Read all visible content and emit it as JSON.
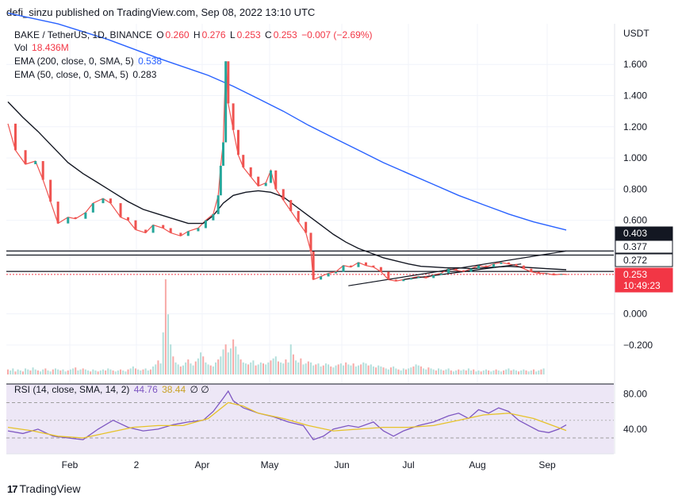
{
  "header": {
    "publisher": "defi_sinzu published on TradingView.com, Sep 08, 2022 13:10 UTC"
  },
  "footer": {
    "brand": "TradingView",
    "logo": "17"
  },
  "legend": {
    "symbol": "BAKE / TetherUS, 1D, BINANCE",
    "o_label": "O",
    "o": "0.260",
    "h_label": "H",
    "h": "0.276",
    "l_label": "L",
    "l": "0.253",
    "c_label": "C",
    "c": "0.253",
    "change": "−0.007 (−2.69%)",
    "vol_label": "Vol",
    "vol": "18.436M",
    "ema200_label": "EMA (200, close, 0, SMA, 5)",
    "ema200": "0.538",
    "ema50_label": "EMA (50, close, 0, SMA, 5)",
    "ema50": "0.283",
    "rsi_label": "RSI (14, close, SMA, 14, 2)",
    "rsi": "44.76",
    "rsi_ma": "38.44",
    "rsi_extra": "∅ ∅"
  },
  "colors": {
    "up": "#26a69a",
    "down": "#ef5350",
    "ema200": "#2962ff",
    "ema50": "#131722",
    "rsi": "#7e57c2",
    "rsi_ma": "#e6c229",
    "last_price": "#f23645"
  },
  "chart_data": [
    {
      "type": "line",
      "title": "BAKE / TetherUS, 1D, BINANCE",
      "currency": "USDT",
      "y_ticks": [
        "1.600",
        "1.400",
        "1.200",
        "1.000",
        "0.800",
        "0.600",
        "0.000",
        "−0.200"
      ],
      "x_ticks": [
        "Feb",
        "2",
        "Apr",
        "May",
        "Jun",
        "Jul",
        "Aug",
        "Sep"
      ],
      "price_labels": [
        {
          "label": "0.403",
          "value": 0.403,
          "style": "dark"
        },
        {
          "label": "0.377",
          "value": 0.377,
          "style": "outline"
        },
        {
          "label": "0.272",
          "value": 0.272,
          "style": "outline"
        },
        {
          "label": "0.253",
          "value": 0.253,
          "style": "red"
        },
        {
          "label": "10:49:23",
          "value": 0.253,
          "style": "red-timer"
        }
      ],
      "horizontal_levels": [
        0.403,
        0.377,
        0.272
      ],
      "last_price": 0.253,
      "series": [
        {
          "name": "BAKE / TetherUS",
          "kind": "close",
          "points": [
            [
              0,
              1.22
            ],
            [
              3,
              1.05
            ],
            [
              7,
              0.96
            ],
            [
              11,
              0.98
            ],
            [
              14,
              0.86
            ],
            [
              17,
              0.72
            ],
            [
              20,
              0.58
            ],
            [
              24,
              0.62
            ],
            [
              27,
              0.61
            ],
            [
              31,
              0.65
            ],
            [
              34,
              0.71
            ],
            [
              38,
              0.74
            ],
            [
              41,
              0.71
            ],
            [
              45,
              0.62
            ],
            [
              48,
              0.6
            ],
            [
              51,
              0.54
            ],
            [
              55,
              0.52
            ],
            [
              58,
              0.57
            ],
            [
              62,
              0.55
            ],
            [
              65,
              0.52
            ],
            [
              69,
              0.5
            ],
            [
              72,
              0.53
            ],
            [
              76,
              0.55
            ],
            [
              79,
              0.6
            ],
            [
              82,
              0.64
            ],
            [
              84,
              0.76
            ],
            [
              85,
              0.95
            ],
            [
              86,
              1.1
            ],
            [
              87,
              1.62
            ],
            [
              88,
              1.35
            ],
            [
              90,
              1.18
            ],
            [
              92,
              1.02
            ],
            [
              94,
              0.94
            ],
            [
              97,
              0.88
            ],
            [
              100,
              0.82
            ],
            [
              103,
              0.84
            ],
            [
              105,
              0.92
            ],
            [
              107,
              0.8
            ],
            [
              110,
              0.73
            ],
            [
              113,
              0.66
            ],
            [
              116,
              0.59
            ],
            [
              119,
              0.52
            ],
            [
              121,
              0.4
            ],
            [
              122,
              0.22
            ],
            [
              125,
              0.24
            ],
            [
              128,
              0.26
            ],
            [
              131,
              0.27
            ],
            [
              134,
              0.31
            ],
            [
              137,
              0.3
            ],
            [
              140,
              0.33
            ],
            [
              143,
              0.31
            ],
            [
              146,
              0.3
            ],
            [
              149,
              0.27
            ],
            [
              152,
              0.22
            ],
            [
              155,
              0.21
            ],
            [
              158,
              0.22
            ],
            [
              161,
              0.23
            ],
            [
              164,
              0.24
            ],
            [
              167,
              0.23
            ],
            [
              170,
              0.25
            ],
            [
              173,
              0.26
            ],
            [
              176,
              0.29
            ],
            [
              179,
              0.28
            ],
            [
              182,
              0.27
            ],
            [
              185,
              0.29
            ],
            [
              188,
              0.31
            ],
            [
              191,
              0.3
            ],
            [
              194,
              0.32
            ],
            [
              197,
              0.33
            ],
            [
              200,
              0.32
            ],
            [
              203,
              0.31
            ],
            [
              206,
              0.29
            ],
            [
              209,
              0.27
            ],
            [
              212,
              0.26
            ],
            [
              215,
              0.26
            ],
            [
              218,
              0.25
            ],
            [
              221,
              0.255
            ],
            [
              223,
              0.253
            ]
          ]
        },
        {
          "name": "EMA (200)",
          "kind": "line",
          "points": [
            [
              0,
              1.93
            ],
            [
              20,
              1.86
            ],
            [
              40,
              1.76
            ],
            [
              60,
              1.64
            ],
            [
              80,
              1.53
            ],
            [
              90,
              1.46
            ],
            [
              100,
              1.38
            ],
            [
              110,
              1.3
            ],
            [
              120,
              1.21
            ],
            [
              130,
              1.13
            ],
            [
              140,
              1.05
            ],
            [
              150,
              0.97
            ],
            [
              160,
              0.9
            ],
            [
              170,
              0.83
            ],
            [
              180,
              0.76
            ],
            [
              190,
              0.7
            ],
            [
              200,
              0.64
            ],
            [
              210,
              0.59
            ],
            [
              223,
              0.538
            ]
          ]
        },
        {
          "name": "EMA (50)",
          "kind": "line",
          "points": [
            [
              0,
              1.36
            ],
            [
              6,
              1.26
            ],
            [
              12,
              1.17
            ],
            [
              18,
              1.07
            ],
            [
              24,
              0.97
            ],
            [
              30,
              0.9
            ],
            [
              36,
              0.84
            ],
            [
              42,
              0.78
            ],
            [
              48,
              0.72
            ],
            [
              54,
              0.67
            ],
            [
              60,
              0.64
            ],
            [
              66,
              0.61
            ],
            [
              72,
              0.58
            ],
            [
              78,
              0.58
            ],
            [
              82,
              0.63
            ],
            [
              86,
              0.71
            ],
            [
              90,
              0.76
            ],
            [
              95,
              0.78
            ],
            [
              100,
              0.79
            ],
            [
              105,
              0.78
            ],
            [
              110,
              0.75
            ],
            [
              115,
              0.69
            ],
            [
              120,
              0.63
            ],
            [
              125,
              0.57
            ],
            [
              130,
              0.51
            ],
            [
              135,
              0.46
            ],
            [
              140,
              0.42
            ],
            [
              145,
              0.39
            ],
            [
              150,
              0.36
            ],
            [
              155,
              0.34
            ],
            [
              160,
              0.32
            ],
            [
              165,
              0.305
            ],
            [
              170,
              0.3
            ],
            [
              175,
              0.295
            ],
            [
              180,
              0.295
            ],
            [
              185,
              0.29
            ],
            [
              190,
              0.295
            ],
            [
              195,
              0.3
            ],
            [
              200,
              0.305
            ],
            [
              205,
              0.3
            ],
            [
              210,
              0.295
            ],
            [
              215,
              0.29
            ],
            [
              223,
              0.283
            ]
          ]
        },
        {
          "name": "Trendline",
          "kind": "line",
          "points": [
            [
              136,
              0.18
            ],
            [
              223,
              0.403
            ]
          ]
        },
        {
          "name": "Trendline 2",
          "kind": "line",
          "points": [
            [
              158,
              0.22
            ],
            [
              205,
              0.32
            ]
          ]
        }
      ]
    },
    {
      "type": "bar",
      "title": "Vol",
      "last": "18.436M",
      "values": [
        5,
        4,
        6,
        3,
        5,
        4,
        3,
        6,
        5,
        4,
        7,
        5,
        4,
        3,
        5,
        6,
        4,
        3,
        5,
        6,
        5,
        4,
        5,
        3,
        4,
        5,
        6,
        7,
        4,
        5,
        6,
        5,
        4,
        3,
        5,
        4,
        3,
        4,
        5,
        4,
        6,
        5,
        4,
        3,
        4,
        5,
        4,
        3,
        5,
        6,
        8,
        6,
        5,
        4,
        5,
        6,
        4,
        5,
        8,
        10,
        14,
        11,
        42,
        95,
        60,
        30,
        18,
        12,
        10,
        8,
        9,
        12,
        15,
        11,
        9,
        13,
        16,
        22,
        18,
        12,
        10,
        9,
        8,
        12,
        15,
        18,
        25,
        30,
        22,
        26,
        35,
        28,
        20,
        15,
        12,
        11,
        10,
        12,
        14,
        9,
        10,
        12,
        11,
        10,
        12,
        14,
        16,
        18,
        13,
        12,
        11,
        15,
        12,
        30,
        20,
        14,
        12,
        16,
        10,
        11,
        13,
        12,
        9,
        10,
        11,
        8,
        9,
        11,
        10,
        8,
        7,
        9,
        10,
        11,
        9,
        12,
        10,
        9,
        11,
        8,
        9,
        10,
        12,
        11,
        9,
        10,
        8,
        7,
        9,
        8,
        7,
        6,
        5,
        7,
        8,
        6,
        5,
        4,
        6,
        5,
        6,
        7,
        8,
        10,
        9,
        8,
        6,
        5,
        7,
        6,
        5,
        4,
        6,
        5,
        4,
        5,
        6,
        4,
        3,
        4,
        5,
        4,
        5,
        4,
        6,
        4,
        5,
        3,
        4,
        3,
        4,
        5,
        4,
        3,
        4,
        5,
        4,
        3,
        4,
        5,
        6,
        4,
        5,
        4,
        3,
        4,
        5,
        4,
        3,
        4,
        5,
        3,
        4,
        5,
        6
      ]
    },
    {
      "type": "line",
      "title": "RSI (14, close, SMA, 14, 2)",
      "y_ticks": [
        "80.00",
        "40.00"
      ],
      "band": [
        30,
        70
      ],
      "series": [
        {
          "name": "RSI",
          "points": [
            [
              0,
              38
            ],
            [
              6,
              35
            ],
            [
              12,
              40
            ],
            [
              18,
              32
            ],
            [
              24,
              30
            ],
            [
              30,
              28
            ],
            [
              36,
              40
            ],
            [
              42,
              50
            ],
            [
              48,
              42
            ],
            [
              54,
              38
            ],
            [
              60,
              40
            ],
            [
              66,
              45
            ],
            [
              72,
              48
            ],
            [
              78,
              50
            ],
            [
              82,
              60
            ],
            [
              86,
              75
            ],
            [
              88,
              83
            ],
            [
              90,
              72
            ],
            [
              94,
              64
            ],
            [
              100,
              58
            ],
            [
              106,
              54
            ],
            [
              112,
              48
            ],
            [
              118,
              44
            ],
            [
              122,
              28
            ],
            [
              126,
              32
            ],
            [
              130,
              40
            ],
            [
              136,
              44
            ],
            [
              140,
              42
            ],
            [
              146,
              48
            ],
            [
              150,
              38
            ],
            [
              154,
              32
            ],
            [
              158,
              38
            ],
            [
              164,
              44
            ],
            [
              170,
              48
            ],
            [
              176,
              55
            ],
            [
              180,
              58
            ],
            [
              184,
              52
            ],
            [
              188,
              62
            ],
            [
              192,
              58
            ],
            [
              196,
              64
            ],
            [
              200,
              60
            ],
            [
              204,
              50
            ],
            [
              208,
              44
            ],
            [
              212,
              38
            ],
            [
              216,
              36
            ],
            [
              220,
              40
            ],
            [
              223,
              44.76
            ]
          ]
        },
        {
          "name": "MA",
          "points": [
            [
              0,
              42
            ],
            [
              10,
              38
            ],
            [
              20,
              32
            ],
            [
              30,
              30
            ],
            [
              40,
              36
            ],
            [
              50,
              42
            ],
            [
              60,
              44
            ],
            [
              70,
              44
            ],
            [
              80,
              52
            ],
            [
              88,
              70
            ],
            [
              94,
              66
            ],
            [
              100,
              58
            ],
            [
              110,
              52
            ],
            [
              120,
              44
            ],
            [
              130,
              38
            ],
            [
              140,
              40
            ],
            [
              150,
              42
            ],
            [
              160,
              42
            ],
            [
              170,
              44
            ],
            [
              180,
              50
            ],
            [
              190,
              56
            ],
            [
              200,
              58
            ],
            [
              210,
              52
            ],
            [
              223,
              38.44
            ]
          ]
        }
      ]
    }
  ]
}
